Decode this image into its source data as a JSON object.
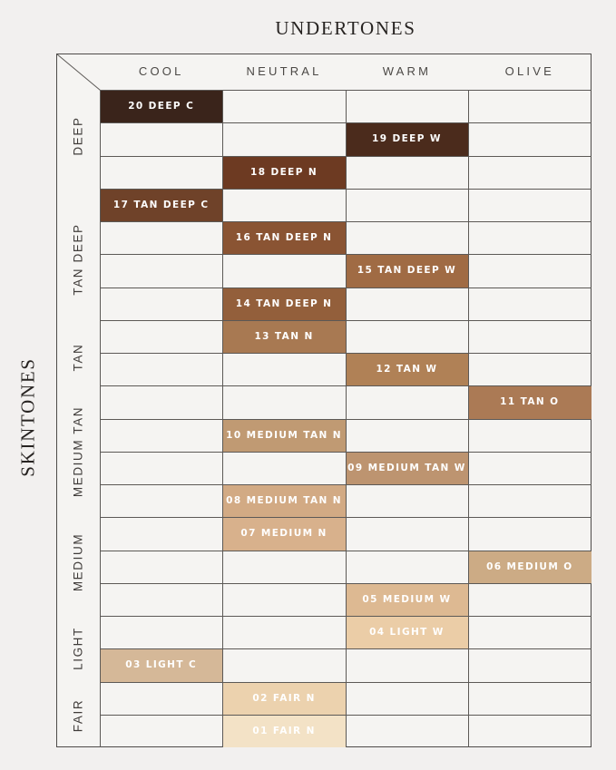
{
  "title": "UNDERTONES",
  "side_title": "SKINTONES",
  "colors": {
    "page_background": "#f2f0ef",
    "cell_background": "#f5f4f2",
    "grid_line": "#5c5956",
    "frame_line": "#4e4b49",
    "title_text": "#272321",
    "header_text": "#4b4845",
    "group_label_text": "#403c3a",
    "swatch_text": "#ffffff"
  },
  "chart_data": {
    "type": "table",
    "title": "UNDERTONES",
    "xlabel": "UNDERTONES",
    "ylabel": "SKINTONES",
    "columns": [
      "COOL",
      "NEUTRAL",
      "WARM",
      "OLIVE"
    ],
    "row_groups": [
      {
        "label": "DEEP",
        "rows": 3
      },
      {
        "label": "TAN DEEP",
        "rows": 4
      },
      {
        "label": "TAN",
        "rows": 3
      },
      {
        "label": "MEDIUM TAN",
        "rows": 3
      },
      {
        "label": "MEDIUM",
        "rows": 3
      },
      {
        "label": "LIGHT",
        "rows": 2
      },
      {
        "label": "FAIR",
        "rows": 2
      }
    ],
    "rows": [
      {
        "label": "20 DEEP C",
        "column": "COOL",
        "color": "#3a241b"
      },
      {
        "label": "19 DEEP W",
        "column": "WARM",
        "color": "#4b2b1c"
      },
      {
        "label": "18 DEEP N",
        "column": "NEUTRAL",
        "color": "#6d3a22"
      },
      {
        "label": "17 TAN DEEP C",
        "column": "COOL",
        "color": "#6f4229"
      },
      {
        "label": "16 TAN DEEP N",
        "column": "NEUTRAL",
        "color": "#8a5433"
      },
      {
        "label": "15 TAN DEEP W",
        "column": "WARM",
        "color": "#a06b44"
      },
      {
        "label": "14 TAN DEEP N",
        "column": "NEUTRAL",
        "color": "#935f3b"
      },
      {
        "label": "13 TAN N",
        "column": "NEUTRAL",
        "color": "#a87952"
      },
      {
        "label": "12 TAN W",
        "column": "WARM",
        "color": "#b08156"
      },
      {
        "label": "11 TAN O",
        "column": "OLIVE",
        "color": "#ab7a55"
      },
      {
        "label": "10 MEDIUM TAN N",
        "column": "NEUTRAL",
        "color": "#c09a73"
      },
      {
        "label": "09 MEDIUM TAN W",
        "column": "WARM",
        "color": "#bd9470"
      },
      {
        "label": "08 MEDIUM TAN N",
        "column": "NEUTRAL",
        "color": "#d2aa84"
      },
      {
        "label": "07 MEDIUM N",
        "column": "NEUTRAL",
        "color": "#d8b18c"
      },
      {
        "label": "06 MEDIUM O",
        "column": "OLIVE",
        "color": "#ccab85"
      },
      {
        "label": "05 MEDIUM W",
        "column": "WARM",
        "color": "#ddb992"
      },
      {
        "label": "04 LIGHT W",
        "column": "WARM",
        "color": "#ebcda7"
      },
      {
        "label": "03 LIGHT C",
        "column": "COOL",
        "color": "#d5b898"
      },
      {
        "label": "02 FAIR N",
        "column": "NEUTRAL",
        "color": "#ecd2ae"
      },
      {
        "label": "01 FAIR N",
        "column": "NEUTRAL",
        "color": "#f3e2c6"
      }
    ]
  }
}
